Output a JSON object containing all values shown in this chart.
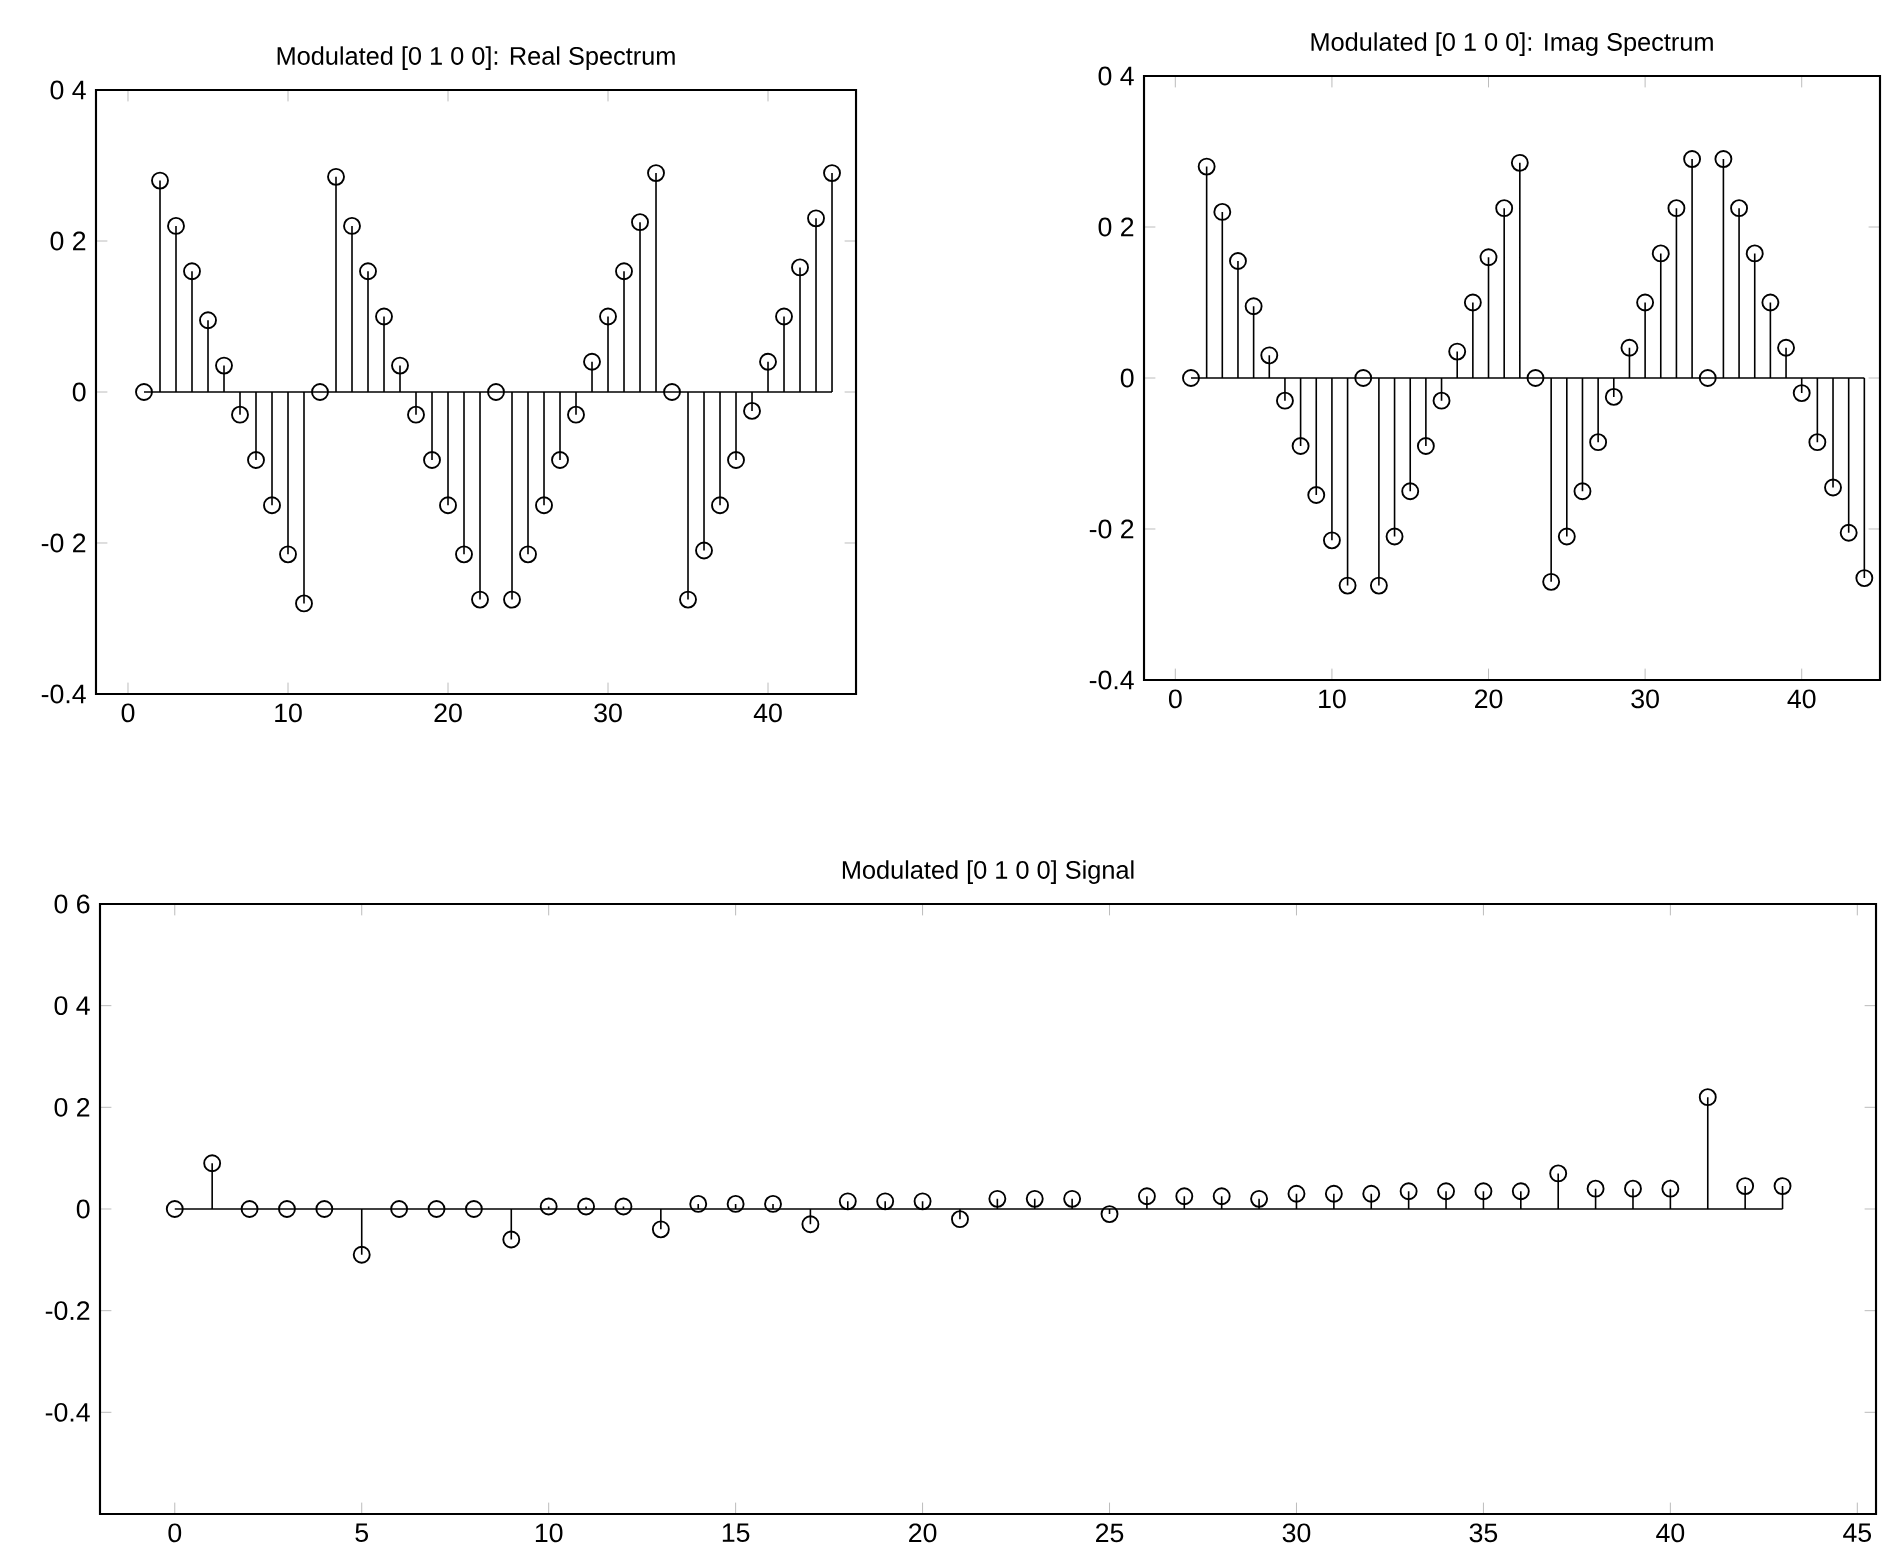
{
  "chart_data": [
    {
      "type": "lollipop",
      "title": "Modulated [0 1 0 0]: Real Spectrum",
      "marker": "circle",
      "color": "#000000",
      "x": [
        1,
        2,
        3,
        4,
        5,
        6,
        7,
        8,
        9,
        10,
        11,
        12,
        13,
        14,
        15,
        16,
        17,
        18,
        19,
        20,
        21,
        22,
        23,
        24,
        25,
        26,
        27,
        28,
        29,
        30,
        31,
        32,
        33,
        34,
        35,
        36,
        37,
        38,
        39,
        40,
        41,
        42,
        43,
        44
      ],
      "values": [
        0,
        0.28,
        0.22,
        0.16,
        0.095,
        0.035,
        -0.03,
        -0.09,
        -0.15,
        -0.215,
        -0.28,
        0,
        0.285,
        0.22,
        0.16,
        0.1,
        0.035,
        -0.03,
        -0.09,
        -0.15,
        -0.215,
        -0.275,
        0,
        -0.275,
        -0.215,
        -0.15,
        -0.09,
        -0.03,
        0.04,
        0.1,
        0.16,
        0.225,
        0.29,
        0,
        -0.275,
        -0.21,
        -0.15,
        -0.09,
        -0.025,
        0.04,
        0.1,
        0.165,
        0.23,
        0.29
      ],
      "xlim": [
        -2,
        45.5
      ],
      "ylim": [
        -0.4,
        0.4
      ],
      "xticks": [
        0,
        10,
        20,
        30,
        40
      ],
      "yticks": [
        {
          "value": 0.4,
          "label": "0 4"
        },
        {
          "value": 0.2,
          "label": "0 2"
        },
        0,
        {
          "value": -0.2,
          "label": "-0 2"
        },
        -0.4
      ]
    },
    {
      "type": "lollipop",
      "title": "Modulated [0 1 0 0]: Imag Spectrum",
      "marker": "circle",
      "color": "#000000",
      "x": [
        1,
        2,
        3,
        4,
        5,
        6,
        7,
        8,
        9,
        10,
        11,
        12,
        13,
        14,
        15,
        16,
        17,
        18,
        19,
        20,
        21,
        22,
        23,
        24,
        25,
        26,
        27,
        28,
        29,
        30,
        31,
        32,
        33,
        34,
        35,
        36,
        37,
        38,
        39,
        40,
        41,
        42,
        43,
        44
      ],
      "values": [
        0,
        0.28,
        0.22,
        0.155,
        0.095,
        0.03,
        -0.03,
        -0.09,
        -0.155,
        -0.215,
        -0.275,
        0,
        -0.275,
        -0.21,
        -0.15,
        -0.09,
        -0.03,
        0.035,
        0.1,
        0.16,
        0.225,
        0.285,
        0,
        -0.27,
        -0.21,
        -0.15,
        -0.085,
        -0.025,
        0.04,
        0.1,
        0.165,
        0.225,
        0.29,
        0,
        0.29,
        0.225,
        0.165,
        0.1,
        0.04,
        -0.02,
        -0.085,
        -0.145,
        -0.205,
        -0.265
      ],
      "xlim": [
        -2,
        45
      ],
      "ylim": [
        -0.4,
        0.4
      ],
      "xticks": [
        0,
        10,
        20,
        30,
        40
      ],
      "yticks": [
        {
          "value": 0.4,
          "label": "0 4"
        },
        {
          "value": 0.2,
          "label": "0 2"
        },
        0,
        {
          "value": -0.2,
          "label": "-0 2"
        },
        -0.4
      ]
    },
    {
      "type": "lollipop",
      "title": "Modulated [0 1 0 0] Signal",
      "marker": "circle",
      "color": "#000000",
      "x": [
        0,
        1,
        2,
        3,
        4,
        5,
        6,
        7,
        8,
        9,
        10,
        11,
        12,
        13,
        14,
        15,
        16,
        17,
        18,
        19,
        20,
        21,
        22,
        23,
        24,
        25,
        26,
        27,
        28,
        29,
        30,
        31,
        32,
        33,
        34,
        35,
        36,
        37,
        38,
        39,
        40,
        41,
        42,
        43
      ],
      "values": [
        0,
        0.09,
        0,
        0,
        0,
        -0.09,
        0,
        0,
        0,
        -0.06,
        0.005,
        0.005,
        0.005,
        -0.04,
        0.01,
        0.01,
        0.01,
        -0.03,
        0.015,
        0.015,
        0.015,
        -0.02,
        0.02,
        0.02,
        0.02,
        -0.01,
        0.025,
        0.025,
        0.025,
        0.02,
        0.03,
        0.03,
        0.03,
        0.035,
        0.035,
        0.035,
        0.035,
        0.07,
        0.04,
        0.04,
        0.04,
        0.22,
        0.045,
        0.045
      ],
      "xlim": [
        -2,
        45.5
      ],
      "ylim": [
        -0.6,
        0.6
      ],
      "xticks": [
        0,
        5,
        10,
        15,
        20,
        25,
        30,
        35,
        40,
        45
      ],
      "yticks": [
        {
          "value": 0.6,
          "label": "0 6"
        },
        {
          "value": 0.4,
          "label": "0 4"
        },
        {
          "value": 0.2,
          "label": "0 2"
        },
        0,
        -0.2,
        -0.4
      ]
    }
  ]
}
